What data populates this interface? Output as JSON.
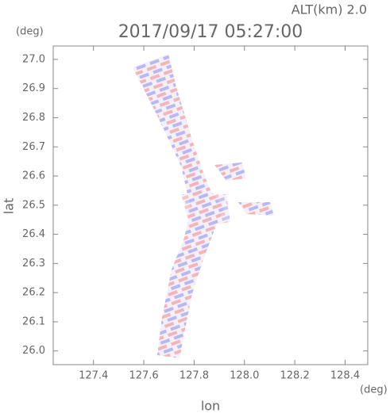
{
  "chart_data": {
    "type": "heatmap",
    "subtitle": "ALT(km) 2.0",
    "title": "2017/09/17 05:27:00",
    "y_unit": "(deg)",
    "x_unit": "(deg)",
    "ylabel": "lat",
    "xlabel": "lon",
    "xlim": [
      127.24,
      128.49
    ],
    "xticks": [
      127.4,
      127.6,
      127.8,
      {
        "value": 128,
        "label": "128.0"
      },
      128.2,
      128.4
    ],
    "ylim": [
      25.953,
      27.046
    ],
    "yticks": [
      {
        "value": 26,
        "label": "26.0"
      },
      26.1,
      26.2,
      26.3,
      26.4,
      26.5,
      26.6,
      26.7,
      26.8,
      26.9,
      {
        "value": 27,
        "label": "27.0"
      }
    ]
  }
}
